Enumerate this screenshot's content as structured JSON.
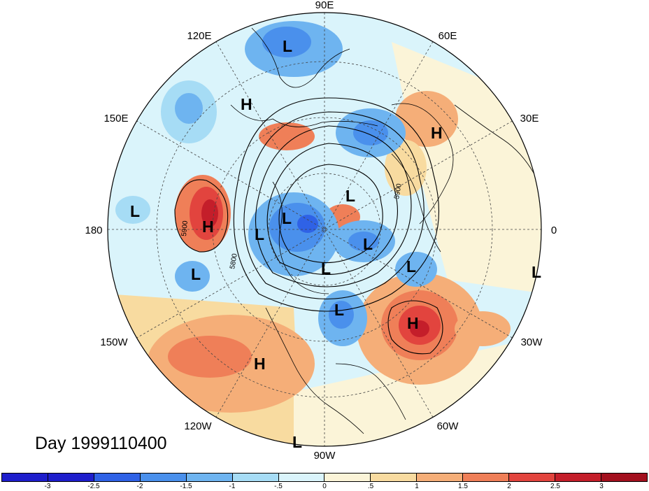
{
  "title": "Day 1999110400",
  "longitude_labels": [
    "90E",
    "60E",
    "30E",
    "0",
    "30W",
    "60W",
    "90W",
    "120W",
    "150W",
    "180",
    "150E",
    "120E"
  ],
  "contour_labels": [
    "5800",
    "5900",
    "5900"
  ],
  "pressure_systems": [
    {
      "type": "L",
      "label": "L"
    },
    {
      "type": "H",
      "label": "H"
    },
    {
      "type": "H",
      "label": "H"
    },
    {
      "type": "L",
      "label": "L"
    },
    {
      "type": "L",
      "label": "L"
    },
    {
      "type": "H",
      "label": "H"
    },
    {
      "type": "L",
      "label": "L"
    },
    {
      "type": "L",
      "label": "L"
    },
    {
      "type": "L",
      "label": "L"
    },
    {
      "type": "L",
      "label": "L"
    },
    {
      "type": "L",
      "label": "L"
    },
    {
      "type": "L",
      "label": "L"
    },
    {
      "type": "L",
      "label": "L"
    },
    {
      "type": "H",
      "label": "H"
    },
    {
      "type": "L",
      "label": "L"
    },
    {
      "type": "H",
      "label": "H"
    },
    {
      "type": "L",
      "label": "L"
    },
    {
      "type": "L",
      "label": "L"
    }
  ],
  "colorbar": {
    "colors": [
      "#1e1ecc",
      "#2f62e6",
      "#4a90ec",
      "#6eb4f0",
      "#a6dcf5",
      "#daf4fb",
      "#fbf4d8",
      "#f8dba0",
      "#f5ae78",
      "#ef7f58",
      "#e2443e",
      "#c41e2a",
      "#a3101e"
    ],
    "tick_labels": [
      "-3",
      "-2.5",
      "-2",
      "-1.5",
      "-1",
      "-.5",
      "0",
      ".5",
      "1",
      "1.5",
      "2",
      "2.5",
      "3"
    ]
  }
}
